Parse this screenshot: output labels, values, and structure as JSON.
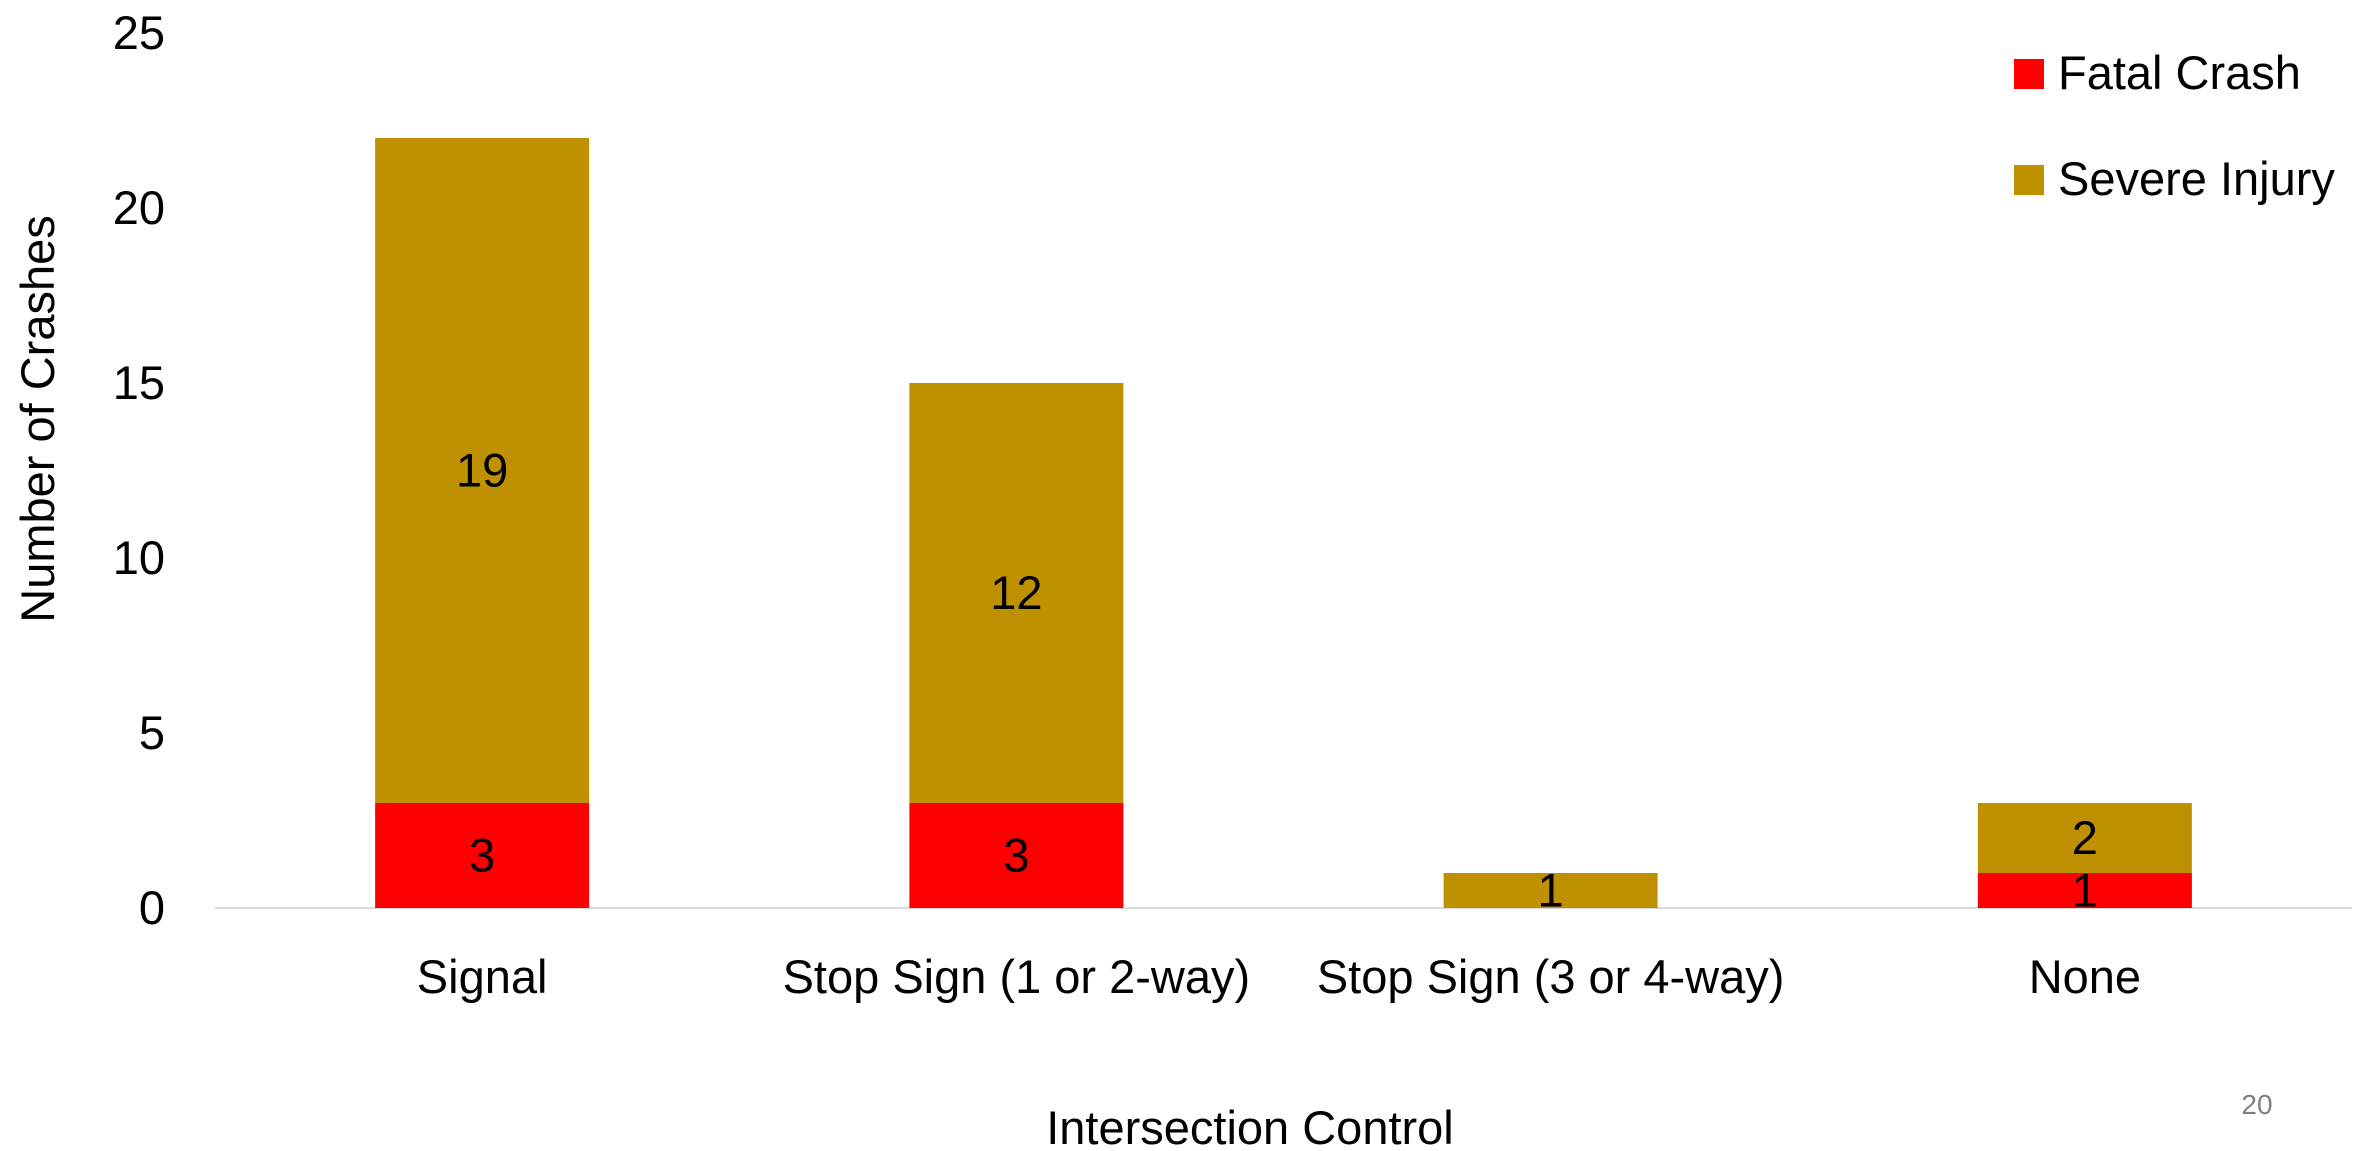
{
  "chart_data": {
    "type": "bar",
    "stacked": true,
    "title": "",
    "xlabel": "Intersection Control",
    "ylabel": "Number of Crashes",
    "categories": [
      "Signal",
      "Stop Sign (1 or 2-way)",
      "Stop Sign (3 or 4-way)",
      "None"
    ],
    "series": [
      {
        "name": "Fatal Crash",
        "color": "#ff0000",
        "values": [
          3,
          3,
          0,
          1
        ]
      },
      {
        "name": "Severe Injury",
        "color": "#bf9000",
        "values": [
          19,
          12,
          1,
          2
        ]
      }
    ],
    "ylim": [
      0,
      25
    ],
    "yticks": [
      0,
      5,
      10,
      15,
      20,
      25
    ],
    "grid": false,
    "legend_position": "top-right"
  },
  "page_number": "20"
}
